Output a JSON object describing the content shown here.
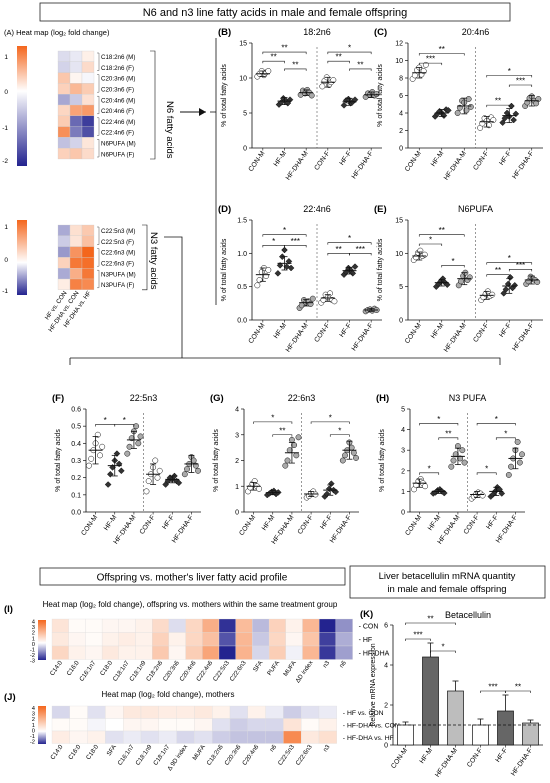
{
  "header_title": "N6 and n3 line fatty acids in male and female offspring",
  "section_n6": "N6 fatty acids",
  "section_n3": "N3 fatty acids",
  "groups": [
    "CON-M",
    "HF-M",
    "HF-DHA-M",
    "CON-F",
    "HF-F",
    "HF-DHA-F"
  ],
  "ylabel_pct": "% of total fatty acids",
  "colors": {
    "orange": "#F4661C",
    "blue": "#23238F",
    "white": "#FFFFFF",
    "hf": "#666666",
    "hfdha": "#BDBDBD",
    "con": "#FFFFFF"
  },
  "heatmapA": {
    "label": "(A) Heat map (log₂ fold change)",
    "colorbar_ticks_top": [
      "1",
      "0",
      "-1",
      "-2"
    ],
    "colorbar_ticks_bottom": [
      "1",
      "0",
      "-1"
    ],
    "columns": [
      "HF vs. CON",
      "HF-DHA vs. CON",
      "HF-DHA vs. HF"
    ],
    "rows_n6": [
      "C18:2n6 (M)",
      "C18:2n6 (F)",
      "C20:3n6 (M)",
      "C20:3n6 (F)",
      "C20:4n6 (M)",
      "C20:4n6 (F)",
      "C22:4n6 (M)",
      "C22:4n6 (F)",
      "N6PUFA (M)",
      "N6PUFA (F)"
    ],
    "values_n6": [
      [
        -0.4,
        -0.25,
        0.15
      ],
      [
        -0.5,
        -0.3,
        0.35
      ],
      [
        0.55,
        0.1,
        -0.1
      ],
      [
        0.45,
        0.7,
        0.5
      ],
      [
        -1.0,
        -0.6,
        0.3
      ],
      [
        0.4,
        0.9,
        1.0
      ],
      [
        0.5,
        -1.7,
        -2.2
      ],
      [
        1.1,
        -1.5,
        -2.0
      ],
      [
        -0.7,
        -0.5,
        0.25
      ],
      [
        0.45,
        0.55,
        0.35
      ]
    ],
    "rows_n3": [
      "C22:5n3 (M)",
      "C22:5n3 (F)",
      "C22:6n3 (M)",
      "C22:6n3 (F)",
      "N3PUFA (M)",
      "N3PUFA (F)"
    ],
    "values_n3": [
      [
        -0.5,
        0.35,
        0.6
      ],
      [
        -0.3,
        0.3,
        0.7
      ],
      [
        -0.6,
        1.2,
        1.7
      ],
      [
        0.5,
        1.5,
        1.6
      ],
      [
        -0.5,
        0.9,
        1.5
      ],
      [
        0.2,
        1.4,
        1.3
      ]
    ]
  },
  "panels": [
    {
      "letter": "(B)",
      "title": "18:2n6",
      "yticks": [
        0,
        5,
        10,
        15
      ],
      "ylim": [
        0,
        15
      ],
      "means": [
        10.6,
        6.7,
        7.9,
        9.4,
        6.6,
        7.6
      ],
      "sds": [
        0.4,
        0.5,
        0.4,
        0.7,
        0.5,
        0.4
      ],
      "points": [
        [
          10.2,
          10.6,
          11.0,
          10.4,
          10.8,
          11.0
        ],
        [
          6.2,
          6.5,
          7.1,
          6.8,
          6.4,
          6.9
        ],
        [
          7.6,
          8.2,
          7.8,
          8.3,
          7.9,
          7.5
        ],
        [
          8.8,
          9.6,
          10.1,
          9.0,
          9.4,
          9.7
        ],
        [
          6.1,
          6.8,
          7.0,
          6.4,
          6.6,
          6.9
        ],
        [
          7.3,
          7.8,
          7.6,
          8.0,
          7.5,
          7.7
        ]
      ],
      "brackets": [
        [
          0,
          1,
          12.4,
          "**"
        ],
        [
          1,
          2,
          11.3,
          "**"
        ],
        [
          0,
          2,
          13.7,
          "**"
        ],
        [
          3,
          4,
          12.4,
          "**"
        ],
        [
          4,
          5,
          11.3,
          "**"
        ],
        [
          3,
          5,
          13.7,
          "*"
        ]
      ]
    },
    {
      "letter": "(C)",
      "title": "20:4n6",
      "yticks": [
        0,
        2,
        4,
        6,
        8,
        10,
        12
      ],
      "ylim": [
        0,
        12
      ],
      "means": [
        8.6,
        4.0,
        4.8,
        3.0,
        3.7,
        5.4
      ],
      "sds": [
        0.6,
        0.4,
        0.9,
        0.6,
        0.8,
        0.6
      ],
      "points": [
        [
          7.9,
          8.3,
          8.9,
          9.2,
          8.4,
          8.8,
          9.5
        ],
        [
          3.6,
          3.9,
          4.2,
          4.0,
          3.7,
          4.4,
          4.3
        ],
        [
          4.0,
          4.6,
          5.4,
          5.2,
          4.3,
          5.6,
          4.7
        ],
        [
          2.3,
          2.8,
          3.4,
          3.1,
          2.6,
          3.5,
          3.2
        ],
        [
          2.9,
          3.4,
          4.0,
          3.6,
          4.8,
          3.2,
          3.9
        ],
        [
          4.8,
          5.2,
          5.7,
          5.9,
          5.4,
          5.1,
          5.6
        ]
      ],
      "brackets": [
        [
          0,
          1,
          9.7,
          "***"
        ],
        [
          0,
          2,
          10.8,
          "**"
        ],
        [
          3,
          4,
          4.9,
          "**"
        ],
        [
          4,
          5,
          7.2,
          "***"
        ],
        [
          3,
          5,
          8.3,
          "*"
        ]
      ]
    },
    {
      "letter": "(D)",
      "title": "22:4n6",
      "yticks": [
        0.0,
        0.5,
        1.0,
        1.5
      ],
      "ylim": [
        0,
        1.5
      ],
      "means": [
        0.68,
        0.85,
        0.26,
        0.33,
        0.74,
        0.15
      ],
      "sds": [
        0.1,
        0.1,
        0.05,
        0.05,
        0.05,
        0.02
      ],
      "points": [
        [
          0.52,
          0.6,
          0.72,
          0.78,
          0.66,
          0.75
        ],
        [
          0.7,
          0.82,
          0.95,
          1.05,
          0.8,
          0.88,
          0.78
        ],
        [
          0.18,
          0.22,
          0.3,
          0.26,
          0.28,
          0.24,
          0.32
        ],
        [
          0.26,
          0.3,
          0.38,
          0.34,
          0.4,
          0.3,
          0.28
        ],
        [
          0.68,
          0.72,
          0.78,
          0.75,
          0.7,
          0.8
        ],
        [
          0.13,
          0.15,
          0.16,
          0.14,
          0.17,
          0.15
        ]
      ],
      "brackets": [
        [
          0,
          1,
          1.12,
          "*"
        ],
        [
          1,
          2,
          1.12,
          "***"
        ],
        [
          0,
          2,
          1.28,
          "*"
        ],
        [
          3,
          4,
          1.0,
          "**"
        ],
        [
          4,
          5,
          1.0,
          "***"
        ],
        [
          3,
          5,
          1.16,
          "*"
        ]
      ]
    },
    {
      "letter": "(E)",
      "title": "N6PUFA",
      "yticks": [
        0,
        5,
        10,
        15
      ],
      "ylim": [
        0,
        15
      ],
      "means": [
        9.6,
        5.6,
        6.2,
        3.7,
        5.1,
        6.0
      ],
      "sds": [
        0.6,
        0.5,
        0.9,
        0.6,
        1.1,
        0.6
      ],
      "points": [
        [
          9.0,
          9.4,
          10.1,
          10.4,
          9.6,
          9.8
        ],
        [
          5.0,
          5.4,
          5.8,
          6.2,
          5.6,
          5.3
        ],
        [
          5.2,
          5.8,
          6.6,
          7.1,
          6.0,
          6.4
        ],
        [
          3.0,
          3.4,
          3.9,
          4.3,
          3.6,
          3.8
        ],
        [
          4.0,
          4.6,
          5.4,
          6.4,
          4.8,
          5.2
        ],
        [
          5.4,
          5.8,
          6.5,
          6.2,
          6.0,
          5.7
        ]
      ],
      "brackets": [
        [
          0,
          1,
          11.4,
          "*"
        ],
        [
          0,
          2,
          12.8,
          "**"
        ],
        [
          1,
          2,
          8.2,
          "*"
        ],
        [
          3,
          4,
          6.8,
          "**"
        ],
        [
          3,
          5,
          8.6,
          "*"
        ],
        [
          4,
          5,
          7.6,
          "***"
        ]
      ]
    },
    {
      "letter": "(F)",
      "title": "22:5n3",
      "yticks": [
        0.0,
        0.1,
        0.2,
        0.3,
        0.4,
        0.5,
        0.6
      ],
      "ylim": [
        0,
        0.6
      ],
      "means": [
        0.36,
        0.27,
        0.42,
        0.22,
        0.19,
        0.28
      ],
      "sds": [
        0.08,
        0.06,
        0.05,
        0.06,
        0.02,
        0.05
      ],
      "points": [
        [
          0.27,
          0.31,
          0.36,
          0.4,
          0.45,
          0.33,
          0.38
        ],
        [
          0.16,
          0.22,
          0.26,
          0.3,
          0.34,
          0.28,
          0.24
        ],
        [
          0.34,
          0.38,
          0.43,
          0.47,
          0.5,
          0.4,
          0.44
        ],
        [
          0.12,
          0.18,
          0.22,
          0.26,
          0.3,
          0.2,
          0.24
        ],
        [
          0.16,
          0.18,
          0.2,
          0.19,
          0.21,
          0.18,
          0.17
        ],
        [
          0.22,
          0.25,
          0.28,
          0.32,
          0.3,
          0.27,
          0.24
        ]
      ],
      "brackets": [
        [
          0,
          1,
          0.51,
          "*"
        ],
        [
          1,
          2,
          0.51,
          "*"
        ]
      ]
    },
    {
      "letter": "(G)",
      "title": "22:6n3",
      "yticks": [
        0,
        1,
        2,
        3,
        4
      ],
      "ylim": [
        0,
        4
      ],
      "means": [
        1.0,
        0.75,
        2.3,
        0.7,
        0.85,
        2.4
      ],
      "sds": [
        0.15,
        0.08,
        0.4,
        0.1,
        0.2,
        0.35
      ],
      "points": [
        [
          0.8,
          0.95,
          1.1,
          1.2,
          1.0,
          0.9
        ],
        [
          0.66,
          0.72,
          0.78,
          0.82,
          0.7,
          0.76
        ],
        [
          1.8,
          2.0,
          2.4,
          2.8,
          2.6,
          2.2,
          2.9
        ],
        [
          0.56,
          0.62,
          0.72,
          0.8,
          0.68
        ],
        [
          0.6,
          0.7,
          0.9,
          1.1,
          0.85,
          0.78
        ],
        [
          2.0,
          2.2,
          2.4,
          2.7,
          2.5,
          2.3,
          2.1
        ]
      ],
      "brackets": [
        [
          0,
          2,
          3.5,
          "*"
        ],
        [
          1,
          2,
          3.0,
          "**"
        ],
        [
          3,
          5,
          3.5,
          "*"
        ],
        [
          4,
          5,
          3.0,
          "*"
        ]
      ]
    },
    {
      "letter": "(H)",
      "title": "N3 PUFA",
      "yticks": [
        0,
        1,
        2,
        3,
        4,
        5
      ],
      "ylim": [
        0,
        5
      ],
      "means": [
        1.4,
        1.0,
        2.7,
        0.85,
        1.0,
        2.6
      ],
      "sds": [
        0.2,
        0.1,
        0.4,
        0.15,
        0.2,
        0.5
      ],
      "points": [
        [
          1.1,
          1.3,
          1.5,
          1.6,
          1.4,
          1.25
        ],
        [
          0.9,
          0.95,
          1.05,
          1.1,
          1.0,
          0.92
        ],
        [
          2.2,
          2.5,
          2.8,
          3.2,
          2.6,
          3.0,
          2.4
        ],
        [
          0.65,
          0.75,
          0.85,
          0.95,
          0.9,
          0.8
        ],
        [
          0.75,
          0.85,
          1.0,
          1.2,
          1.1,
          0.9
        ],
        [
          1.8,
          2.2,
          2.6,
          3.0,
          3.4,
          2.4,
          2.8
        ]
      ],
      "brackets": [
        [
          0,
          1,
          1.9,
          "*"
        ],
        [
          0,
          2,
          4.3,
          "*"
        ],
        [
          1,
          2,
          3.6,
          "**"
        ],
        [
          3,
          4,
          1.9,
          "*"
        ],
        [
          3,
          5,
          4.3,
          "*"
        ],
        [
          4,
          5,
          3.6,
          "*"
        ]
      ]
    }
  ],
  "offspring_box": "Offspring vs. mother's liver fatty acid profile",
  "heatmapI": {
    "letter": "(I)",
    "title": "Heat map (log₂ fold change), offspring vs. mothers within the same treatment group",
    "colorbar_ticks": [
      "4",
      "3",
      "2",
      "1",
      "0",
      "-1",
      "-2",
      "-3"
    ],
    "rows": [
      "CON",
      "HF",
      "HF-DHA"
    ],
    "columns": [
      "C14:0",
      "C16:0",
      "C16:1n7",
      "C18:0",
      "C18:1n7",
      "C18:1n9",
      "C18:2n6",
      "C20:3n6",
      "C20:4n6",
      "C22:4n6",
      "C22:5n3",
      "C22:6n3",
      "SFA",
      "PUFA",
      "MUFA",
      "ΔD index",
      "n3",
      "n6"
    ],
    "values": [
      [
        0.6,
        0.1,
        0.1,
        0.2,
        0.2,
        0.3,
        0.8,
        -0.5,
        0.9,
        1.8,
        -3.0,
        1.5,
        -1.0,
        1.0,
        0.3,
        1.6,
        -3.2,
        -1.6
      ],
      [
        0.5,
        0.2,
        0.1,
        0.3,
        0.4,
        0.3,
        1.0,
        0.3,
        0.9,
        1.4,
        -2.5,
        1.6,
        -0.8,
        0.9,
        0.2,
        1.3,
        -2.8,
        -1.2
      ],
      [
        0.9,
        0.3,
        0.2,
        0.5,
        0.3,
        0.3,
        1.2,
        0.2,
        1.1,
        2.0,
        -3.2,
        1.7,
        -0.6,
        1.1,
        -0.2,
        1.6,
        -2.9,
        -1.4
      ]
    ]
  },
  "heatmapJ": {
    "letter": "(J)",
    "title": "Heat map (log₂ fold change), mothers",
    "colorbar_ticks": [
      "4",
      "3",
      "2",
      "1",
      "0",
      "-1",
      "-2"
    ],
    "rows": [
      "HF vs. CON",
      "HF-DHA vs. CON",
      "HF-DHA vs. HF"
    ],
    "columns": [
      "C14:0",
      "C16:0",
      "C18:0",
      "SFA",
      "C16:1n7",
      "C18:1n9",
      "C18:1n7",
      "Δ 9D index",
      "MUFA",
      "C18:2n6",
      "C20:3n6",
      "C20:4n6",
      "n6",
      "C22:5n3",
      "C22:6n3",
      "n3"
    ],
    "values": [
      [
        -0.4,
        0.1,
        -0.3,
        0.2,
        0.5,
        0.5,
        0.4,
        0.4,
        0.5,
        0.3,
        -0.3,
        0.3,
        -0.2,
        -0.5,
        -0.3,
        -0.2
      ],
      [
        0.1,
        0.1,
        -0.1,
        0.0,
        0.2,
        0.2,
        0.1,
        0.1,
        0.2,
        -0.3,
        -0.5,
        -0.4,
        -0.4,
        0.6,
        0.1,
        0.3
      ],
      [
        0.4,
        0.2,
        0.3,
        -0.3,
        -0.2,
        -0.3,
        -0.2,
        -0.4,
        -0.3,
        -0.5,
        -0.6,
        -0.6,
        -0.6,
        2.6,
        0.5,
        0.7
      ]
    ]
  },
  "liver_box": "Liver betacellulin mRNA quantity in male and female offspring",
  "panelK": {
    "letter": "(K)",
    "title": "Betacellulin",
    "ylabel": "Relative mRNA expression",
    "yticks": [
      0,
      2,
      4,
      6
    ],
    "ylim": [
      0,
      6
    ],
    "means": [
      1.0,
      4.4,
      2.7,
      1.0,
      1.7,
      1.1
    ],
    "errs": [
      0.15,
      0.7,
      0.5,
      0.3,
      0.8,
      0.15
    ],
    "brackets": [
      [
        0,
        1,
        5.3,
        "***"
      ],
      [
        0,
        2,
        6.1,
        "**"
      ],
      [
        1,
        2,
        4.7,
        "*"
      ],
      [
        3,
        4,
        2.7,
        "***"
      ],
      [
        4,
        5,
        2.7,
        "**"
      ]
    ]
  }
}
